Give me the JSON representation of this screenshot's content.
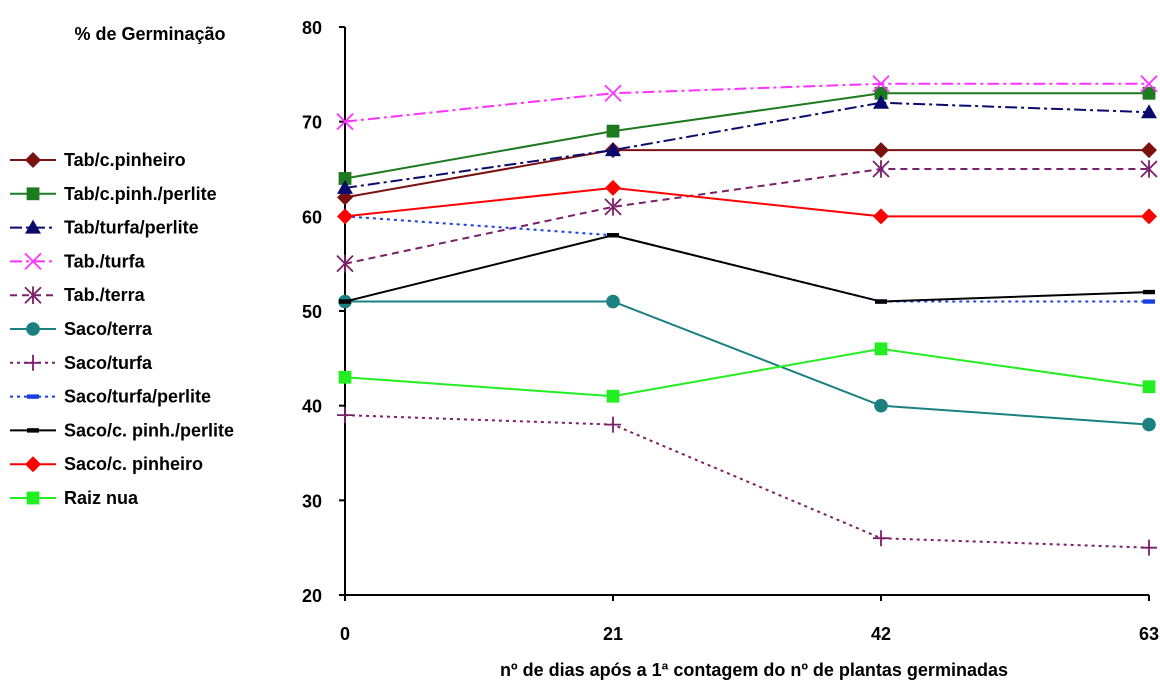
{
  "chart_data": {
    "type": "line",
    "ylabel": "% de Germinação",
    "xlabel": "nº de dias após a 1ª contagem do nº de plantas germinadas",
    "x": [
      0,
      21,
      42,
      63
    ],
    "ylim": [
      20,
      80
    ],
    "yticks": [
      20,
      30,
      40,
      50,
      60,
      70,
      80
    ],
    "grid": false,
    "legend": "left",
    "series": [
      {
        "name": "Tab/c.pinheiro",
        "values": [
          62,
          67,
          67,
          67
        ],
        "color": "#7B1010",
        "marker": "diamond",
        "dash": "solid"
      },
      {
        "name": "Tab/c.pinh./perlite",
        "values": [
          64,
          69,
          73,
          73
        ],
        "color": "#1E7A1E",
        "marker": "square",
        "dash": "solid"
      },
      {
        "name": "Tab/turfa/perlite",
        "values": [
          63,
          67,
          72,
          71
        ],
        "color": "#0A0A6E",
        "marker": "triangle",
        "dash": "dashdot"
      },
      {
        "name": "Tab./turfa",
        "values": [
          70,
          73,
          74,
          74
        ],
        "color": "#FF33FF",
        "marker": "x",
        "dash": "dashdot"
      },
      {
        "name": "Tab./terra",
        "values": [
          55,
          61,
          65,
          65
        ],
        "color": "#7A1F6A",
        "marker": "asterisk",
        "dash": "dash"
      },
      {
        "name": "Saco/terra",
        "values": [
          51,
          51,
          40,
          38
        ],
        "color": "#1A8080",
        "marker": "circle",
        "dash": "solid"
      },
      {
        "name": "Saco/turfa",
        "values": [
          39,
          38,
          26,
          25
        ],
        "color": "#7A1F6A",
        "marker": "plus",
        "dash": "dot"
      },
      {
        "name": "Saco/turfa/perlite",
        "values": [
          60,
          58,
          51,
          51
        ],
        "color": "#1A3FE0",
        "marker": "dash",
        "dash": "dot"
      },
      {
        "name": "Saco/c. pinh./perlite",
        "values": [
          51,
          58,
          51,
          52
        ],
        "color": "#000000",
        "marker": "dash",
        "dash": "solid"
      },
      {
        "name": "Saco/c. pinheiro",
        "values": [
          60,
          63,
          60,
          60
        ],
        "color": "#FF0000",
        "marker": "diamond",
        "dash": "solid"
      },
      {
        "name": "Raiz nua",
        "values": [
          43,
          41,
          46,
          42
        ],
        "color": "#22EE22",
        "marker": "square",
        "dash": "solid"
      }
    ]
  }
}
